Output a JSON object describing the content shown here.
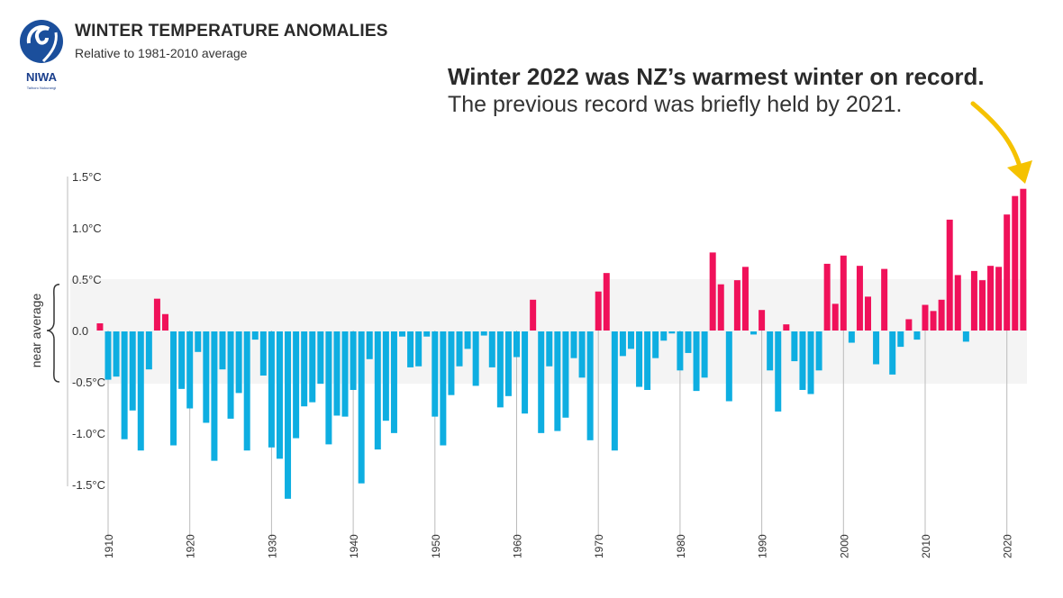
{
  "header": {
    "title": "WINTER TEMPERATURE ANOMALIES",
    "subtitle": "Relative to 1981-2010 average",
    "logo_text": "NIWA",
    "logo_tagline": "Taihoro Nukurangi"
  },
  "annotation": {
    "headline": "Winter 2022 was NZ’s warmest winter on record.",
    "detail": "The previous record was briefly held by 2021."
  },
  "colors": {
    "positive": "#f0115a",
    "negative": "#0eaee1",
    "arrow": "#f5c200",
    "band": "#f4f4f4"
  },
  "chart_data": {
    "type": "bar",
    "title": "WINTER TEMPERATURE ANOMALIES",
    "subtitle": "Relative to 1981-2010 average",
    "ylim": [
      -1.5,
      1.5
    ],
    "y_ticks": [
      1.5,
      1.0,
      0.5,
      0.0,
      -0.5,
      -1.0,
      -1.5
    ],
    "y_tick_labels": [
      "1.5°C",
      "1.0°C",
      "0.5°C",
      "0.0",
      "-0.5°C",
      "-1.0°C",
      "-1.5°C"
    ],
    "x_ticks": [
      1910,
      1920,
      1930,
      1940,
      1950,
      1960,
      1970,
      1980,
      1990,
      2000,
      2010,
      2020
    ],
    "band": {
      "label": "near average",
      "range": [
        -0.5,
        0.5
      ]
    },
    "grid": false,
    "start_year": 1909,
    "values": [
      0.07,
      -0.47,
      -0.44,
      -1.05,
      -0.77,
      -1.16,
      -0.37,
      0.31,
      0.16,
      -1.11,
      -0.56,
      -0.75,
      -0.2,
      -0.89,
      -1.26,
      -0.37,
      -0.85,
      -0.6,
      -1.16,
      -0.08,
      -0.43,
      -1.13,
      -1.24,
      -1.63,
      -1.04,
      -0.73,
      -0.69,
      -0.51,
      -1.1,
      -0.82,
      -0.83,
      -0.57,
      -1.48,
      -0.27,
      -1.15,
      -0.87,
      -0.99,
      -0.05,
      -0.35,
      -0.34,
      -0.05,
      -0.83,
      -1.11,
      -0.62,
      -0.34,
      -0.17,
      -0.53,
      -0.04,
      -0.35,
      -0.74,
      -0.63,
      -0.25,
      -0.8,
      0.3,
      -0.99,
      -0.34,
      -0.97,
      -0.84,
      -0.26,
      -0.45,
      -1.06,
      0.38,
      0.56,
      -1.16,
      -0.24,
      -0.17,
      -0.54,
      -0.57,
      -0.26,
      -0.09,
      -0.02,
      -0.38,
      -0.21,
      -0.58,
      -0.45,
      0.76,
      0.45,
      -0.68,
      0.49,
      0.62,
      -0.03,
      0.2,
      -0.38,
      -0.78,
      0.06,
      -0.29,
      -0.57,
      -0.61,
      -0.38,
      0.65,
      0.26,
      0.73,
      -0.11,
      0.63,
      0.33,
      -0.32,
      0.6,
      -0.42,
      -0.15,
      0.11,
      -0.08,
      0.25,
      0.19,
      0.3,
      1.08,
      0.54,
      -0.1,
      0.58,
      0.49,
      0.63,
      0.62,
      1.13,
      1.31,
      1.38
    ]
  }
}
